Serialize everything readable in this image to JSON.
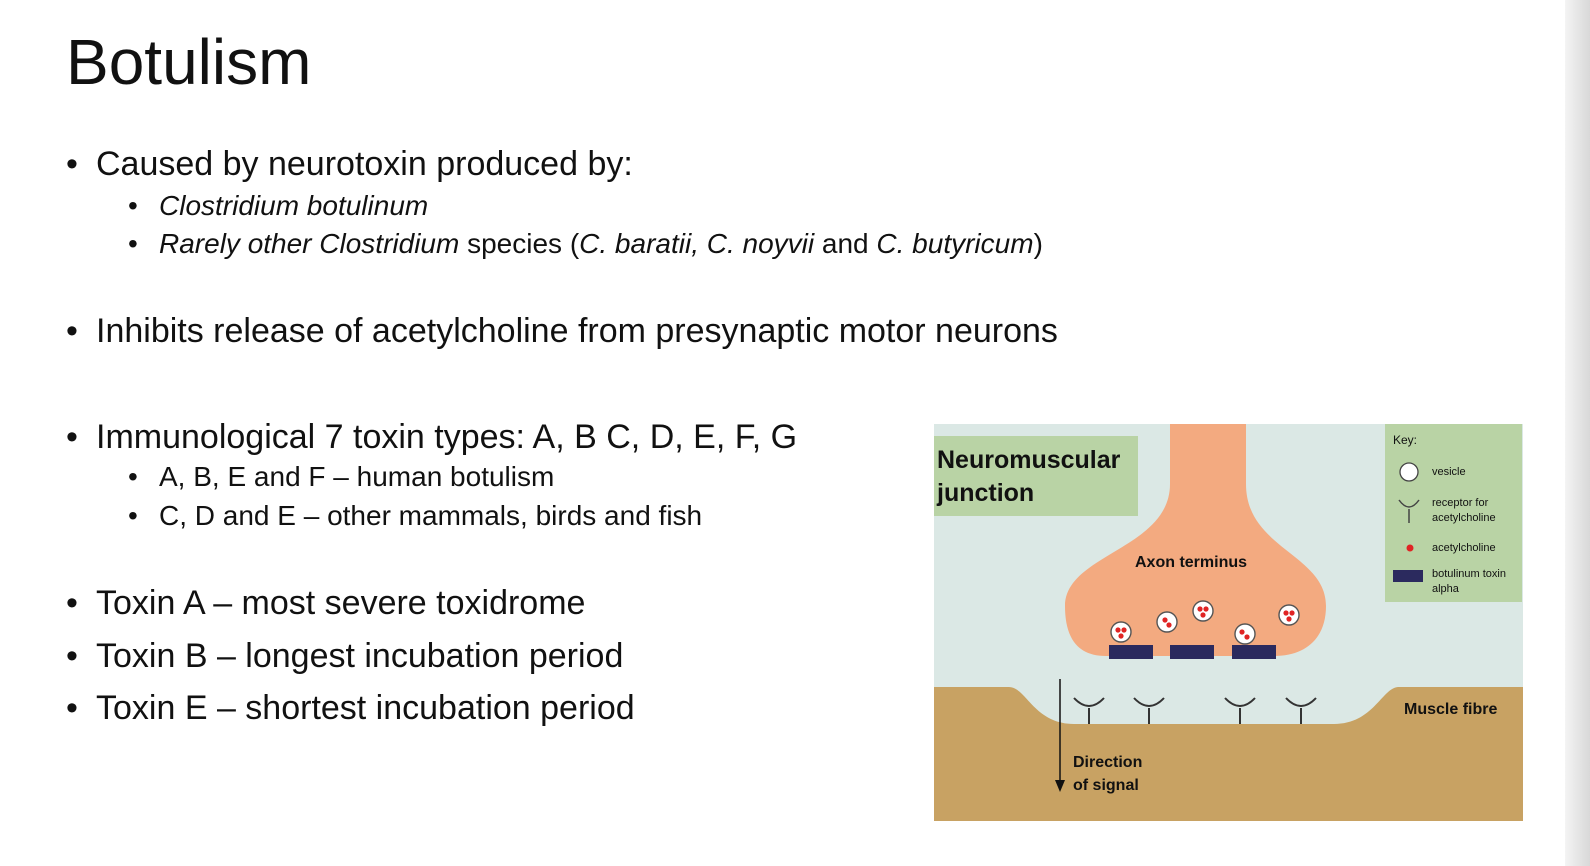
{
  "slide": {
    "title": "Botulism",
    "b1_text": "Caused by neurotoxin produced by:",
    "b1_sub1": "Clostridium botulinum",
    "b1_sub2_italic1": "Rarely other Clostridium",
    "b1_sub2_plain1": " species (",
    "b1_sub2_italic2": "C. baratii, C. noyvii",
    "b1_sub2_plain2": " and ",
    "b1_sub2_italic3": "C. butyricum",
    "b1_sub2_plain3": ")",
    "b2_text": "Inhibits release of acetylcholine from presynaptic motor neurons",
    "b3_text": "Immunological 7 toxin types: A, B C, D, E, F, G",
    "b3_sub1": "A, B, E and F – human botulism",
    "b3_sub2": "C, D and E – other mammals, birds and fish",
    "b4_text": "Toxin A – most severe toxidrome",
    "b5_text": "Toxin B – longest incubation period",
    "b6_text": "Toxin E – shortest incubation period",
    "bullet": "•"
  },
  "diagram": {
    "title_line1": "Neuromuscular",
    "title_line2": "junction",
    "axon_label": "Axon terminus",
    "muscle_label": "Muscle fibre",
    "direction_line1": "Direction",
    "direction_line2": "of signal",
    "key_title": "Key:",
    "key_vesicle": "vesicle",
    "key_receptor_line1": "receptor for",
    "key_receptor_line2": "acetylcholine",
    "key_ach": "acetylcholine",
    "key_toxin_line1": "botulinum toxin",
    "key_toxin_line2": "alpha",
    "colors": {
      "background": "#dbe8e5",
      "axon": "#f3aa80",
      "muscle": "#c8a263",
      "key_box": "#b9d3a5",
      "toxin": "#2b2a5e",
      "ach": "#e02424"
    }
  }
}
